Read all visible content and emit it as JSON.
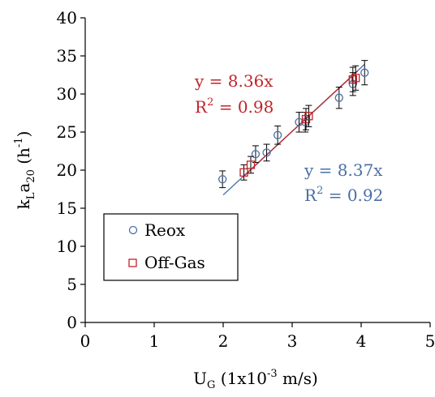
{
  "chart_data": {
    "type": "scatter",
    "xlabel": {
      "main": "U",
      "sub": "G",
      "rest": " (1x10",
      "sup": "-3",
      "tail": " m/s)"
    },
    "ylabel": {
      "k": "k",
      "ksub": "L",
      "a": "a",
      "asub": "20",
      "rest": " (h",
      "sup": "-1",
      "tail": ")"
    },
    "xlim": [
      0,
      5
    ],
    "ylim": [
      0,
      40
    ],
    "xticks": [
      0,
      1,
      2,
      3,
      4,
      5
    ],
    "yticks": [
      0,
      5,
      10,
      15,
      20,
      25,
      30,
      35,
      40
    ],
    "grid": false,
    "legend_placement": "bottom-left",
    "series": [
      {
        "name": "Reox",
        "color": "#4a6fa5",
        "marker": "circle",
        "points": [
          {
            "x": 1.99,
            "y": 18.8,
            "err": 1.1
          },
          {
            "x": 2.47,
            "y": 22.1,
            "err": 1.1
          },
          {
            "x": 2.63,
            "y": 22.3,
            "err": 1.1
          },
          {
            "x": 2.79,
            "y": 24.6,
            "err": 1.2
          },
          {
            "x": 3.1,
            "y": 26.3,
            "err": 1.3
          },
          {
            "x": 3.19,
            "y": 26.3,
            "err": 1.3
          },
          {
            "x": 3.68,
            "y": 29.5,
            "err": 1.4
          },
          {
            "x": 3.88,
            "y": 31.3,
            "err": 1.5
          },
          {
            "x": 4.05,
            "y": 32.8,
            "err": 1.6
          }
        ],
        "fit": {
          "slope": 8.37,
          "x_range": [
            2.0,
            4.05
          ]
        },
        "equation": "y = 8.37x",
        "r2_label": "R",
        "r2_sup": "2",
        "r2_value": " = 0.92"
      },
      {
        "name": "Off-Gas",
        "color": "#c0242b",
        "marker": "square",
        "points": [
          {
            "x": 2.3,
            "y": 19.7,
            "err": 1.0
          },
          {
            "x": 2.4,
            "y": 20.7,
            "err": 1.1
          },
          {
            "x": 3.2,
            "y": 26.7,
            "err": 1.4
          },
          {
            "x": 3.24,
            "y": 27.1,
            "err": 1.4
          },
          {
            "x": 3.88,
            "y": 31.9,
            "err": 1.6
          },
          {
            "x": 3.92,
            "y": 32.1,
            "err": 1.6
          }
        ],
        "fit": {
          "slope": 8.36,
          "x_range": [
            2.3,
            3.95
          ]
        },
        "equation": "y = 8.36x",
        "r2_label": "R",
        "r2_sup": "2",
        "r2_value": " = 0.98"
      }
    ]
  }
}
